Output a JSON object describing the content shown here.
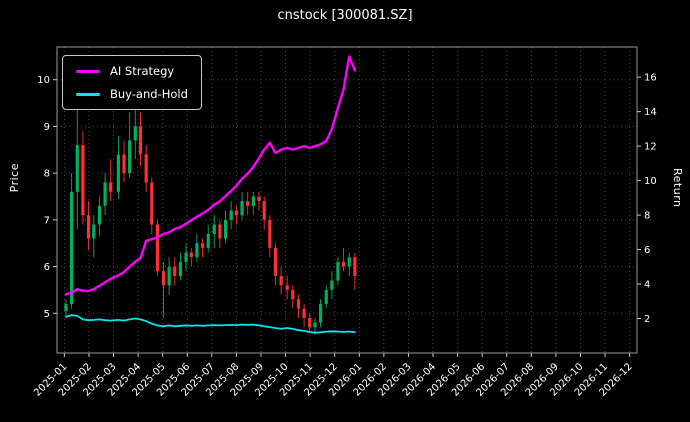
{
  "axes": {
    "left_label": "Price",
    "right_label": "Return"
  },
  "chart_data": {
    "type": "candlestick+line",
    "title": "cnstock [300081.SZ]",
    "x_tick_labels": [
      "2025-01",
      "2025-02",
      "2025-03",
      "2025-04",
      "2025-05",
      "2025-06",
      "2025-07",
      "2025-08",
      "2025-09",
      "2025-10",
      "2025-11",
      "2025-12",
      "2026-01",
      "2026-02",
      "2026-03",
      "2026-04",
      "2026-05",
      "2026-06",
      "2026-07",
      "2026-08",
      "2026-09",
      "2026-10",
      "2026-11",
      "2026-12"
    ],
    "price_ticks": [
      5,
      6,
      7,
      8,
      9,
      10
    ],
    "return_ticks": [
      2,
      4,
      6,
      8,
      10,
      12,
      14,
      16
    ],
    "price_ylim": [
      4.15,
      10.7
    ],
    "return_ylim": [
      0,
      17.75
    ],
    "grid": "dotted",
    "legend_position": "upper-left",
    "candles": [
      [
        "2025-01-03",
        5.05,
        5.3,
        4.9,
        5.2
      ],
      [
        "2025-01-10",
        5.2,
        8.0,
        5.1,
        7.6
      ],
      [
        "2025-01-17",
        7.6,
        9.45,
        6.8,
        8.6
      ],
      [
        "2025-01-24",
        8.6,
        8.9,
        6.9,
        7.1
      ],
      [
        "2025-01-31",
        7.1,
        7.4,
        6.35,
        6.6
      ],
      [
        "2025-02-07",
        6.6,
        7.1,
        6.2,
        6.9
      ],
      [
        "2025-02-14",
        6.9,
        7.5,
        6.65,
        7.3
      ],
      [
        "2025-02-21",
        7.3,
        8.0,
        7.1,
        7.8
      ],
      [
        "2025-02-28",
        7.8,
        8.3,
        7.4,
        7.6
      ],
      [
        "2025-03-07",
        7.6,
        8.8,
        7.45,
        8.4
      ],
      [
        "2025-03-14",
        8.4,
        8.7,
        7.8,
        8.0
      ],
      [
        "2025-03-21",
        8.0,
        9.3,
        7.9,
        8.7
      ],
      [
        "2025-03-28",
        8.7,
        9.6,
        8.3,
        9.0
      ],
      [
        "2025-04-04",
        9.0,
        9.3,
        8.15,
        8.4
      ],
      [
        "2025-04-11",
        8.4,
        8.6,
        7.6,
        7.8
      ],
      [
        "2025-04-18",
        7.8,
        7.9,
        6.7,
        6.9
      ],
      [
        "2025-04-25",
        6.9,
        7.0,
        5.8,
        5.9
      ],
      [
        "2025-05-02",
        5.9,
        6.1,
        4.9,
        5.6
      ],
      [
        "2025-05-09",
        5.6,
        6.2,
        5.4,
        6.0
      ],
      [
        "2025-05-16",
        6.0,
        6.2,
        5.6,
        5.8
      ],
      [
        "2025-05-23",
        5.8,
        6.3,
        5.7,
        6.1
      ],
      [
        "2025-05-30",
        6.1,
        6.5,
        5.9,
        6.3
      ],
      [
        "2025-06-06",
        6.3,
        6.4,
        6.0,
        6.2
      ],
      [
        "2025-06-13",
        6.2,
        6.7,
        6.1,
        6.5
      ],
      [
        "2025-06-20",
        6.5,
        6.6,
        6.2,
        6.4
      ],
      [
        "2025-06-27",
        6.4,
        6.9,
        6.3,
        6.7
      ],
      [
        "2025-07-04",
        6.7,
        7.1,
        6.4,
        6.9
      ],
      [
        "2025-07-11",
        6.9,
        7.0,
        6.4,
        6.6
      ],
      [
        "2025-07-18",
        6.6,
        7.2,
        6.5,
        7.0
      ],
      [
        "2025-07-25",
        7.0,
        7.4,
        6.8,
        7.2
      ],
      [
        "2025-08-01",
        7.2,
        7.3,
        6.9,
        7.1
      ],
      [
        "2025-08-08",
        7.1,
        7.6,
        7.0,
        7.4
      ],
      [
        "2025-08-15",
        7.4,
        7.6,
        7.1,
        7.3
      ],
      [
        "2025-08-22",
        7.3,
        7.6,
        7.1,
        7.5
      ],
      [
        "2025-08-29",
        7.5,
        7.6,
        7.2,
        7.4
      ],
      [
        "2025-09-05",
        7.4,
        7.5,
        6.8,
        7.0
      ],
      [
        "2025-09-12",
        7.0,
        7.1,
        6.2,
        6.4
      ],
      [
        "2025-09-19",
        6.4,
        6.5,
        5.6,
        5.8
      ],
      [
        "2025-09-26",
        5.8,
        6.0,
        5.4,
        5.6
      ],
      [
        "2025-10-03",
        5.6,
        5.8,
        5.3,
        5.5
      ],
      [
        "2025-10-10",
        5.5,
        5.6,
        5.1,
        5.3
      ],
      [
        "2025-10-17",
        5.3,
        5.4,
        4.9,
        5.1
      ],
      [
        "2025-10-24",
        5.1,
        5.2,
        4.7,
        4.9
      ],
      [
        "2025-10-31",
        4.9,
        5.0,
        4.6,
        4.7
      ],
      [
        "2025-11-07",
        4.7,
        4.9,
        4.55,
        4.8
      ],
      [
        "2025-11-14",
        4.8,
        5.3,
        4.7,
        5.2
      ],
      [
        "2025-11-21",
        5.2,
        5.6,
        5.1,
        5.5
      ],
      [
        "2025-11-28",
        5.5,
        5.9,
        5.3,
        5.7
      ],
      [
        "2025-12-05",
        5.7,
        6.2,
        5.6,
        6.1
      ],
      [
        "2025-12-12",
        6.1,
        6.4,
        5.9,
        6.0
      ],
      [
        "2025-12-19",
        6.0,
        6.3,
        5.8,
        6.2
      ],
      [
        "2025-12-26",
        6.2,
        6.3,
        5.5,
        5.8
      ]
    ],
    "series": [
      {
        "name": "AI Strategy",
        "axis": "return",
        "color": "#ff00ff",
        "values": [
          3.4,
          3.5,
          3.7,
          3.6,
          3.6,
          3.7,
          3.9,
          4.1,
          4.3,
          4.5,
          4.7,
          5.0,
          5.3,
          5.5,
          6.5,
          6.6,
          6.7,
          6.9,
          7.0,
          7.2,
          7.3,
          7.5,
          7.7,
          7.9,
          8.1,
          8.3,
          8.6,
          8.8,
          9.1,
          9.4,
          9.7,
          10.1,
          10.4,
          10.8,
          11.3,
          11.8,
          12.2,
          11.6,
          11.8,
          11.9,
          11.8,
          11.9,
          12.0,
          11.9,
          12.0,
          12.1,
          12.3,
          13.0,
          14.2,
          15.3,
          17.2,
          16.4
        ]
      },
      {
        "name": "Buy-and-Hold",
        "axis": "return",
        "color": "#00e5ee",
        "values": [
          2.1,
          2.2,
          2.15,
          1.95,
          1.9,
          1.92,
          1.95,
          1.9,
          1.88,
          1.92,
          1.88,
          1.95,
          2.0,
          1.95,
          1.85,
          1.7,
          1.6,
          1.55,
          1.6,
          1.55,
          1.58,
          1.6,
          1.58,
          1.6,
          1.58,
          1.6,
          1.62,
          1.6,
          1.62,
          1.63,
          1.62,
          1.65,
          1.63,
          1.65,
          1.6,
          1.55,
          1.5,
          1.45,
          1.4,
          1.45,
          1.4,
          1.32,
          1.28,
          1.22,
          1.18,
          1.2,
          1.24,
          1.26,
          1.25,
          1.22,
          1.25,
          1.2
        ]
      }
    ],
    "colors": {
      "up": "#00b060",
      "down": "#fe3032",
      "grid": "#484848",
      "spine": "#9a9a9a",
      "tick": "#cccccc",
      "text": "#ffffff",
      "background": "#000000"
    }
  }
}
